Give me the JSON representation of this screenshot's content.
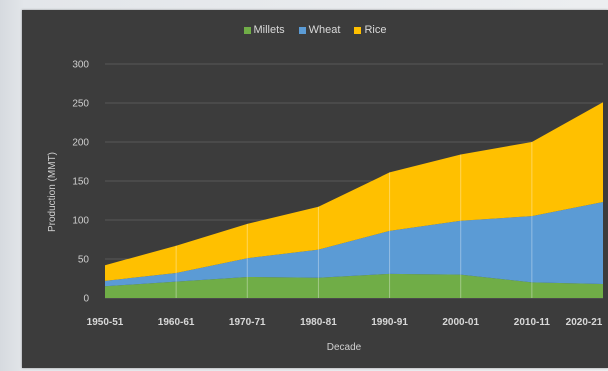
{
  "chart_data": {
    "type": "area",
    "stacked": true,
    "categories": [
      "1950-51",
      "1960-61",
      "1970-71",
      "1980-81",
      "1990-91",
      "2000-01",
      "2010-11",
      "2020-21"
    ],
    "series": [
      {
        "name": "Millets",
        "color": "#70ad47",
        "values": [
          15,
          21,
          27,
          26,
          31,
          30,
          20,
          18
        ]
      },
      {
        "name": "Wheat",
        "color": "#5b9bd5",
        "values": [
          7,
          11,
          24,
          36,
          55,
          69,
          85,
          105
        ]
      },
      {
        "name": "Rice",
        "color": "#ffc000",
        "values": [
          20,
          35,
          44,
          55,
          75,
          85,
          95,
          128
        ]
      }
    ],
    "xlabel": "Decade",
    "ylabel": "Production (MMT)",
    "ylim": [
      0,
      300
    ],
    "yticks": [
      0,
      50,
      100,
      150,
      200,
      250,
      300
    ],
    "grid": true,
    "legend_position": "top"
  }
}
